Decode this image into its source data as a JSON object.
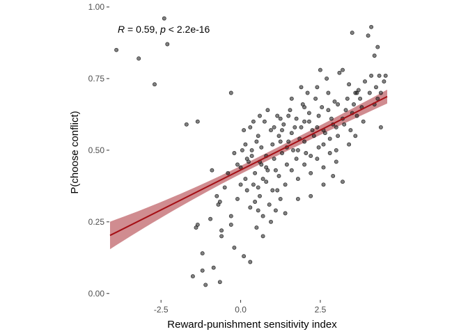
{
  "chart_data": {
    "type": "scatter",
    "title": "",
    "xlabel": "Reward-punishment sensitivity index",
    "ylabel": "P(choose conflict)",
    "xlim": [
      -4.1,
      4.6
    ],
    "ylim": [
      -0.02,
      1.0
    ],
    "x_ticks": [
      -2.5,
      0.0,
      2.5
    ],
    "x_tick_labels": [
      "-2.5",
      "0.0",
      "2.5"
    ],
    "y_ticks": [
      0.0,
      0.25,
      0.5,
      0.75,
      1.0
    ],
    "y_tick_labels": [
      "0.00",
      "0.25",
      "0.50",
      "0.75",
      "1.00"
    ],
    "grid": false,
    "annotation": {
      "r_label": "R",
      "r_rest": " = 0.59, ",
      "p_label": "p",
      "p_rest": " < 2.2e-16"
    },
    "regression": {
      "intercept": 0.431,
      "slope": 0.0557,
      "x_range": [
        -4.1,
        4.6
      ],
      "ci_halfwidth_at_min": 0.048,
      "ci_halfwidth_at_center": 0.014,
      "ci_halfwidth_at_max": 0.024,
      "line_color": "#a50f15",
      "band_color": "#c8787c"
    },
    "point_color": "#1a1a1a",
    "points": [
      [
        -3.9,
        0.85
      ],
      [
        -3.2,
        0.82
      ],
      [
        -2.7,
        0.73
      ],
      [
        -2.4,
        0.96
      ],
      [
        -2.3,
        0.87
      ],
      [
        -1.7,
        0.59
      ],
      [
        -1.35,
        0.6
      ],
      [
        -1.5,
        0.06
      ],
      [
        -1.2,
        0.08
      ],
      [
        -1.1,
        0.03
      ],
      [
        -1.35,
        0.24
      ],
      [
        -1.2,
        0.14
      ],
      [
        -0.85,
        0.09
      ],
      [
        -0.65,
        0.04
      ],
      [
        -0.95,
        0.26
      ],
      [
        -0.7,
        0.31
      ],
      [
        -0.6,
        0.2
      ],
      [
        -0.75,
        0.34
      ],
      [
        -1.4,
        0.23
      ],
      [
        -0.9,
        0.43
      ],
      [
        -0.3,
        0.7
      ],
      [
        -0.5,
        0.37
      ],
      [
        -0.3,
        0.27
      ],
      [
        -0.2,
        0.16
      ],
      [
        0.1,
        0.13
      ],
      [
        0.3,
        0.11
      ],
      [
        0.7,
        0.2
      ],
      [
        0.5,
        0.23
      ],
      [
        0.15,
        0.4
      ],
      [
        -0.4,
        0.42
      ],
      [
        -0.6,
        0.22
      ],
      [
        -0.3,
        0.24
      ],
      [
        -0.65,
        0.32
      ],
      [
        0.0,
        0.44
      ],
      [
        0.2,
        0.47
      ],
      [
        0.35,
        0.5
      ],
      [
        0.5,
        0.53
      ],
      [
        0.65,
        0.45
      ],
      [
        0.8,
        0.48
      ],
      [
        1.0,
        0.52
      ],
      [
        1.1,
        0.43
      ],
      [
        1.2,
        0.55
      ],
      [
        1.3,
        0.49
      ],
      [
        1.45,
        0.51
      ],
      [
        1.6,
        0.56
      ],
      [
        1.75,
        0.47
      ],
      [
        1.9,
        0.58
      ],
      [
        2.0,
        0.53
      ],
      [
        2.15,
        0.6
      ],
      [
        2.3,
        0.55
      ],
      [
        2.45,
        0.62
      ],
      [
        2.6,
        0.57
      ],
      [
        2.75,
        0.64
      ],
      [
        2.9,
        0.59
      ],
      [
        3.05,
        0.66
      ],
      [
        3.2,
        0.61
      ],
      [
        3.35,
        0.68
      ],
      [
        3.5,
        0.63
      ],
      [
        3.65,
        0.7
      ],
      [
        3.8,
        0.65
      ],
      [
        0.1,
        0.57
      ],
      [
        0.3,
        0.58
      ],
      [
        0.55,
        0.55
      ],
      [
        0.75,
        0.6
      ],
      [
        0.95,
        0.57
      ],
      [
        1.15,
        0.62
      ],
      [
        1.35,
        0.59
      ],
      [
        1.55,
        0.64
      ],
      [
        1.75,
        0.61
      ],
      [
        1.95,
        0.66
      ],
      [
        2.15,
        0.63
      ],
      [
        2.35,
        0.68
      ],
      [
        2.55,
        0.65
      ],
      [
        2.75,
        0.7
      ],
      [
        2.95,
        0.67
      ],
      [
        0.2,
        0.36
      ],
      [
        0.4,
        0.38
      ],
      [
        0.6,
        0.34
      ],
      [
        0.8,
        0.39
      ],
      [
        1.0,
        0.36
      ],
      [
        1.2,
        0.41
      ],
      [
        1.4,
        0.38
      ],
      [
        1.6,
        0.43
      ],
      [
        1.8,
        0.4
      ],
      [
        2.0,
        0.45
      ],
      [
        2.2,
        0.42
      ],
      [
        2.4,
        0.47
      ],
      [
        2.6,
        0.44
      ],
      [
        2.8,
        0.49
      ],
      [
        3.0,
        0.46
      ],
      [
        0.05,
        0.5
      ],
      [
        0.25,
        0.46
      ],
      [
        0.45,
        0.42
      ],
      [
        0.65,
        0.51
      ],
      [
        0.85,
        0.43
      ],
      [
        1.05,
        0.47
      ],
      [
        1.25,
        0.53
      ],
      [
        1.45,
        0.45
      ],
      [
        1.65,
        0.5
      ],
      [
        1.85,
        0.54
      ],
      [
        2.05,
        0.49
      ],
      [
        2.25,
        0.57
      ],
      [
        2.45,
        0.51
      ],
      [
        2.65,
        0.56
      ],
      [
        2.85,
        0.61
      ],
      [
        3.05,
        0.55
      ],
      [
        3.25,
        0.59
      ],
      [
        3.45,
        0.57
      ],
      [
        3.65,
        0.62
      ],
      [
        3.85,
        0.6
      ],
      [
        0.9,
        0.31
      ],
      [
        1.1,
        0.29
      ],
      [
        0.7,
        0.27
      ],
      [
        1.25,
        0.33
      ],
      [
        0.55,
        0.29
      ],
      [
        0.95,
        0.25
      ],
      [
        1.4,
        0.28
      ],
      [
        0.45,
        0.32
      ],
      [
        1.15,
        0.36
      ],
      [
        0.8,
        0.44
      ],
      [
        2.1,
        0.7
      ],
      [
        2.4,
        0.72
      ],
      [
        2.7,
        0.75
      ],
      [
        3.1,
        0.77
      ],
      [
        3.4,
        0.73
      ],
      [
        3.7,
        0.71
      ],
      [
        3.9,
        0.74
      ],
      [
        4.1,
        0.76
      ],
      [
        4.3,
        0.68
      ],
      [
        4.5,
        0.74
      ],
      [
        3.5,
        0.91
      ],
      [
        4.0,
        0.9
      ],
      [
        4.1,
        0.93
      ],
      [
        4.3,
        0.86
      ],
      [
        4.2,
        0.83
      ],
      [
        4.35,
        0.76
      ],
      [
        4.4,
        0.7
      ],
      [
        4.55,
        0.76
      ],
      [
        4.2,
        0.66
      ],
      [
        4.4,
        0.58
      ],
      [
        3.2,
        0.78
      ],
      [
        3.6,
        0.7
      ],
      [
        3.0,
        0.5
      ],
      [
        3.4,
        0.52
      ],
      [
        3.6,
        0.55
      ],
      [
        2.2,
        0.34
      ],
      [
        2.6,
        0.38
      ],
      [
        1.8,
        0.33
      ],
      [
        2.9,
        0.41
      ],
      [
        3.2,
        0.39
      ],
      [
        1.9,
        0.72
      ],
      [
        2.5,
        0.78
      ],
      [
        1.6,
        0.68
      ],
      [
        2.0,
        0.65
      ],
      [
        1.5,
        0.62
      ],
      [
        0.6,
        0.46
      ],
      [
        0.35,
        0.48
      ],
      [
        0.15,
        0.52
      ],
      [
        -0.1,
        0.45
      ],
      [
        -0.2,
        0.49
      ],
      [
        1.8,
        0.5
      ],
      [
        2.0,
        0.6
      ],
      [
        2.2,
        0.48
      ],
      [
        2.4,
        0.58
      ],
      [
        2.6,
        0.52
      ],
      [
        2.8,
        0.54
      ],
      [
        3.0,
        0.58
      ],
      [
        3.3,
        0.64
      ],
      [
        3.55,
        0.66
      ],
      [
        3.75,
        0.68
      ],
      [
        4.05,
        0.7
      ],
      [
        4.25,
        0.72
      ],
      [
        1.3,
        0.57
      ],
      [
        1.5,
        0.53
      ],
      [
        1.7,
        0.58
      ],
      [
        0.4,
        0.6
      ],
      [
        0.6,
        0.62
      ],
      [
        0.85,
        0.64
      ],
      [
        1.05,
        0.58
      ],
      [
        1.25,
        0.61
      ],
      [
        0.0,
        0.38
      ],
      [
        -0.1,
        0.33
      ],
      [
        0.3,
        0.3
      ],
      [
        0.55,
        0.37
      ],
      [
        0.7,
        0.4
      ]
    ]
  }
}
